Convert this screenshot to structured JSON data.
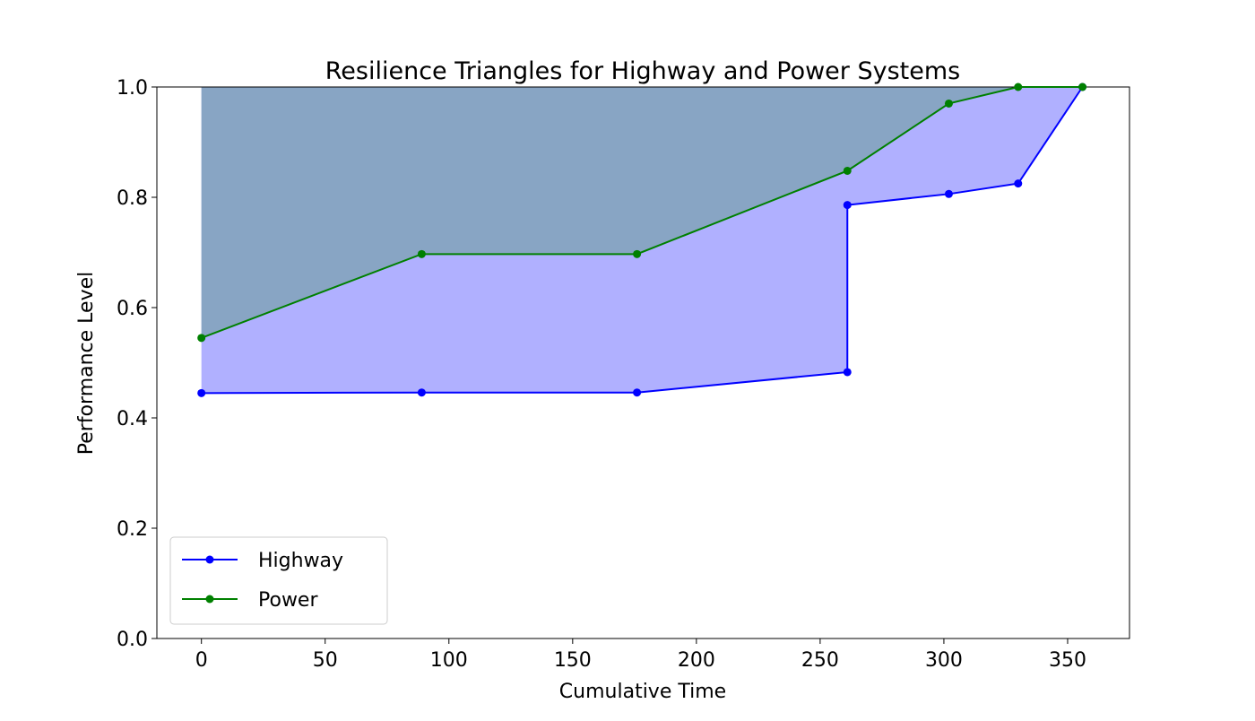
{
  "chart_data": {
    "type": "line",
    "title": "Resilience Triangles for Highway and Power Systems",
    "xlabel": "Cumulative Time",
    "ylabel": "Performance Level",
    "xlim": [
      -18,
      375
    ],
    "ylim": [
      0,
      1
    ],
    "xticks": [
      0,
      50,
      100,
      150,
      200,
      250,
      300,
      350
    ],
    "yticks": [
      0.0,
      0.2,
      0.4,
      0.6,
      0.8,
      1.0
    ],
    "xtick_labels": [
      "0",
      "50",
      "100",
      "150",
      "200",
      "250",
      "300",
      "350"
    ],
    "ytick_labels": [
      "0.0",
      "0.2",
      "0.4",
      "0.6",
      "0.8",
      "1.0"
    ],
    "grid": false,
    "legend_position": "lower-left",
    "series": [
      {
        "name": "Highway",
        "color": "#0000ff",
        "fill_color": "#b0b0ff",
        "x": [
          0,
          89,
          176,
          261,
          261,
          302,
          330,
          356
        ],
        "y": [
          0.445,
          0.446,
          0.446,
          0.483,
          0.786,
          0.806,
          0.825,
          1.0
        ]
      },
      {
        "name": "Power",
        "color": "#008000",
        "fill_color": "#7ba1b0",
        "x": [
          0,
          89,
          176,
          261,
          302,
          330,
          356
        ],
        "y": [
          0.545,
          0.697,
          0.697,
          0.848,
          0.97,
          1.0,
          1.0
        ]
      }
    ]
  }
}
